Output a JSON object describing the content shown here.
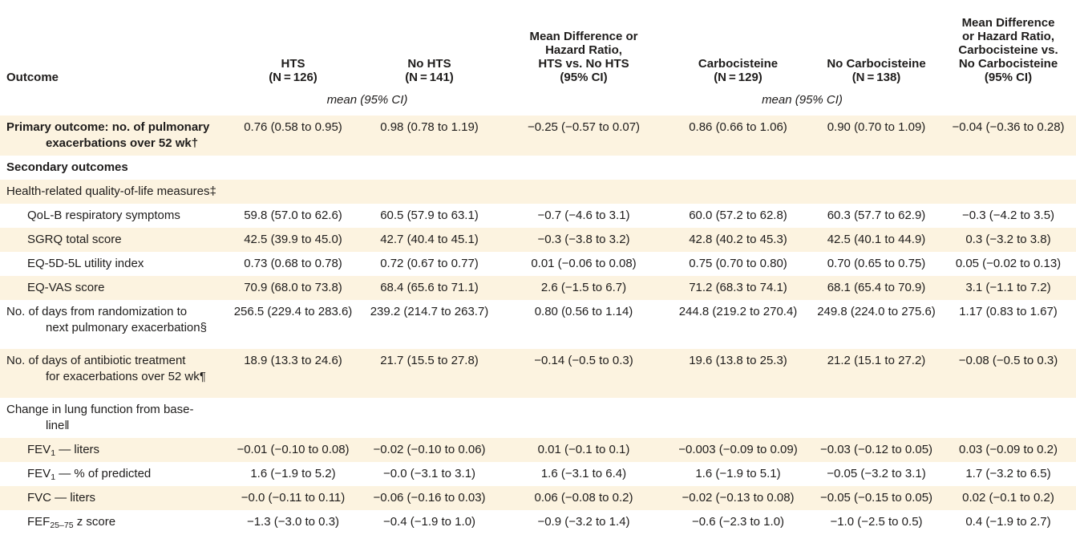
{
  "colors": {
    "row_shade": "#fcf3e0",
    "text": "#1e1c1b",
    "background": "#ffffff"
  },
  "table": {
    "columns": [
      {
        "id": "outcome",
        "header_lines": [
          "Outcome"
        ]
      },
      {
        "id": "hts",
        "header_lines": [
          "HTS",
          "(N = 126)"
        ]
      },
      {
        "id": "no-hts",
        "header_lines": [
          "No HTS",
          "(N = 141)"
        ]
      },
      {
        "id": "md-hts",
        "header_lines": [
          "Mean Difference or",
          "Hazard Ratio,",
          "HTS vs. No HTS",
          "(95% CI)"
        ]
      },
      {
        "id": "carbocisteine",
        "header_lines": [
          "Carbocisteine",
          "(N = 129)"
        ]
      },
      {
        "id": "no-carbocisteine",
        "header_lines": [
          "No Carbocisteine",
          "(N = 138)"
        ]
      },
      {
        "id": "md-carbocisteine",
        "header_lines": [
          "Mean Difference",
          "or Hazard Ratio,",
          "Carbocisteine vs.",
          "No Carbocisteine",
          "(95% CI)"
        ]
      }
    ],
    "subheaders": [
      "mean (95% CI)",
      "mean (95% CI)"
    ],
    "rows": [
      {
        "id": "primary-outcome",
        "bold": true,
        "indent": false,
        "shaded": true,
        "tall": false,
        "label_lines": [
          "Primary outcome: no. of pulmonary",
          "exacerbations over 52 wk†"
        ],
        "cells": [
          "0.76 (0.58 to 0.95)",
          "0.98 (0.78 to 1.19)",
          "−0.25 (−0.57 to 0.07)",
          "0.86 (0.66 to 1.06)",
          "0.90 (0.70 to 1.09)",
          "−0.04 (−0.36 to 0.28)"
        ]
      },
      {
        "id": "secondary-outcomes",
        "bold": true,
        "indent": false,
        "shaded": false,
        "tall": false,
        "label_lines": [
          "Secondary outcomes"
        ],
        "cells": [
          "",
          "",
          "",
          "",
          "",
          ""
        ]
      },
      {
        "id": "hrqol-measures",
        "bold": false,
        "indent": false,
        "shaded": true,
        "tall": false,
        "label_lines": [
          "Health-related quality-of-life measures‡"
        ],
        "cells": [
          "",
          "",
          "",
          "",
          "",
          ""
        ]
      },
      {
        "id": "qol-b-respiratory",
        "bold": false,
        "indent": true,
        "shaded": false,
        "tall": false,
        "label_lines": [
          "QoL-B respiratory symptoms"
        ],
        "cells": [
          "59.8 (57.0 to 62.6)",
          "60.5 (57.9 to 63.1)",
          "−0.7 (−4.6 to 3.1)",
          "60.0 (57.2 to 62.8)",
          "60.3 (57.7 to 62.9)",
          "−0.3 (−4.2 to 3.5)"
        ]
      },
      {
        "id": "sgrq-total",
        "bold": false,
        "indent": true,
        "shaded": true,
        "tall": false,
        "label_lines": [
          "SGRQ total score"
        ],
        "cells": [
          "42.5 (39.9 to 45.0)",
          "42.7 (40.4 to 45.1)",
          "−0.3 (−3.8 to 3.2)",
          "42.8 (40.2 to 45.3)",
          "42.5 (40.1 to 44.9)",
          "0.3 (−3.2 to 3.8)"
        ]
      },
      {
        "id": "eq5d5l-utility",
        "bold": false,
        "indent": true,
        "shaded": false,
        "tall": false,
        "label_lines": [
          "EQ-5D-5L utility index"
        ],
        "cells": [
          "0.73 (0.68 to 0.78)",
          "0.72 (0.67 to 0.77)",
          "0.01 (−0.06 to 0.08)",
          "0.75 (0.70 to 0.80)",
          "0.70 (0.65 to 0.75)",
          "0.05 (−0.02 to 0.13)"
        ]
      },
      {
        "id": "eq-vas-score",
        "bold": false,
        "indent": true,
        "shaded": true,
        "tall": false,
        "label_lines": [
          "EQ-VAS score"
        ],
        "cells": [
          "70.9 (68.0 to 73.8)",
          "68.4 (65.6 to 71.1)",
          "2.6 (−1.5 to 6.7)",
          "71.2 (68.3 to 74.1)",
          "68.1 (65.4 to 70.9)",
          "3.1 (−1.1 to 7.2)"
        ]
      },
      {
        "id": "days-to-next-exacerbation",
        "bold": false,
        "indent": false,
        "shaded": false,
        "tall": true,
        "label_lines": [
          "No. of days from randomization to",
          "next pulmonary exacerbation§"
        ],
        "cells": [
          "256.5 (229.4 to 283.6)",
          "239.2 (214.7 to 263.7)",
          "0.80 (0.56 to 1.14)",
          "244.8 (219.2 to 270.4)",
          "249.8 (224.0 to 275.6)",
          "1.17 (0.83 to 1.67)"
        ]
      },
      {
        "id": "antibiotic-days",
        "bold": false,
        "indent": false,
        "shaded": true,
        "tall": true,
        "label_lines": [
          "No. of days of antibiotic treatment",
          "for exacerbations over 52 wk¶"
        ],
        "cells": [
          "18.9 (13.3 to 24.6)",
          "21.7 (15.5 to 27.8)",
          "−0.14 (−0.5 to 0.3)",
          "19.6 (13.8 to 25.3)",
          "21.2 (15.1 to 27.2)",
          "−0.08 (−0.5 to 0.3)"
        ]
      },
      {
        "id": "lung-function-change",
        "bold": false,
        "indent": false,
        "shaded": false,
        "tall": false,
        "label_lines": [
          "Change in lung function from base-",
          "line‖"
        ],
        "cells": [
          "",
          "",
          "",
          "",
          "",
          ""
        ]
      },
      {
        "id": "fev1-liters",
        "bold": false,
        "indent": true,
        "shaded": true,
        "tall": false,
        "label_lines": [
          "FEV_{1} — liters"
        ],
        "cells": [
          "−0.01 (−0.10 to 0.08)",
          "−0.02 (−0.10 to 0.06)",
          "0.01 (−0.1 to 0.1)",
          "−0.003 (−0.09 to 0.09)",
          "−0.03 (−0.12 to 0.05)",
          "0.03 (−0.09 to 0.2)"
        ]
      },
      {
        "id": "fev1-percent-predicted",
        "bold": false,
        "indent": true,
        "shaded": false,
        "tall": false,
        "label_lines": [
          "FEV_{1} — % of predicted"
        ],
        "cells": [
          "1.6 (−1.9 to 5.2)",
          "−0.0 (−3.1 to 3.1)",
          "1.6 (−3.1 to 6.4)",
          "1.6 (−1.9 to 5.1)",
          "−0.05 (−3.2 to 3.1)",
          "1.7 (−3.2 to 6.5)"
        ]
      },
      {
        "id": "fvc-liters",
        "bold": false,
        "indent": true,
        "shaded": true,
        "tall": false,
        "label_lines": [
          "FVC — liters"
        ],
        "cells": [
          "−0.0 (−0.11 to 0.11)",
          "−0.06 (−0.16 to 0.03)",
          "0.06 (−0.08 to 0.2)",
          "−0.02 (−0.13 to 0.08)",
          "−0.05 (−0.15 to 0.05)",
          "0.02 (−0.1 to 0.2)"
        ]
      },
      {
        "id": "fef2575-z-score",
        "bold": false,
        "indent": true,
        "shaded": false,
        "tall": false,
        "label_lines": [
          "FEF_{25–75} z score"
        ],
        "cells": [
          "−1.3 (−3.0 to 0.3)",
          "−0.4 (−1.9 to 1.0)",
          "−0.9 (−3.2 to 1.4)",
          "−0.6 (−2.3 to 1.0)",
          "−1.0 (−2.5 to 0.5)",
          "0.4 (−1.9 to 2.7)"
        ]
      }
    ]
  }
}
